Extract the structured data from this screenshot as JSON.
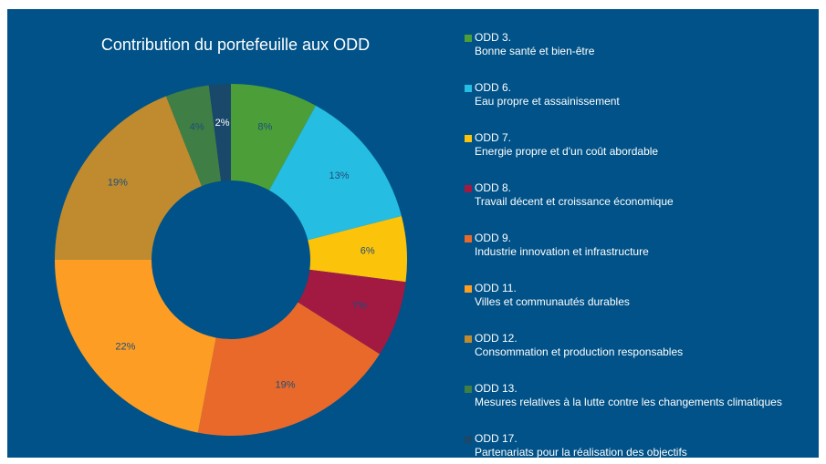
{
  "chart_data": {
    "type": "pie",
    "title": "Contribution du portefeuille aux ODD",
    "categories": [
      "ODD 3.",
      "ODD 6.",
      "ODD 7.",
      "ODD 8.",
      "ODD 9.",
      "ODD 11.",
      "ODD 12.",
      "ODD 13.",
      "ODD 17."
    ],
    "descriptions": [
      "Bonne santé et bien-être",
      "Eau propre et assainissement",
      "Energie propre et d'un coût abordable",
      "Travail décent et croissance économique",
      "Industrie innovation et infrastructure",
      "Villes et communautés durables",
      "Consommation et production responsables",
      "Mesures relatives à la lutte contre les changements climatiques",
      "Partenariats pour la réalisation des objectifs"
    ],
    "values": [
      8,
      13,
      6,
      7,
      19,
      22,
      19,
      4,
      2
    ],
    "value_labels": [
      "8%",
      "13%",
      "6%",
      "7%",
      "19%",
      "22%",
      "19%",
      "4%",
      "2%"
    ],
    "colors": [
      "#4c9f38",
      "#26bde2",
      "#fcc30b",
      "#a21942",
      "#e9692b",
      "#fd9d24",
      "#bf8b2e",
      "#3f7e44",
      "#19486a"
    ],
    "donut": true
  }
}
